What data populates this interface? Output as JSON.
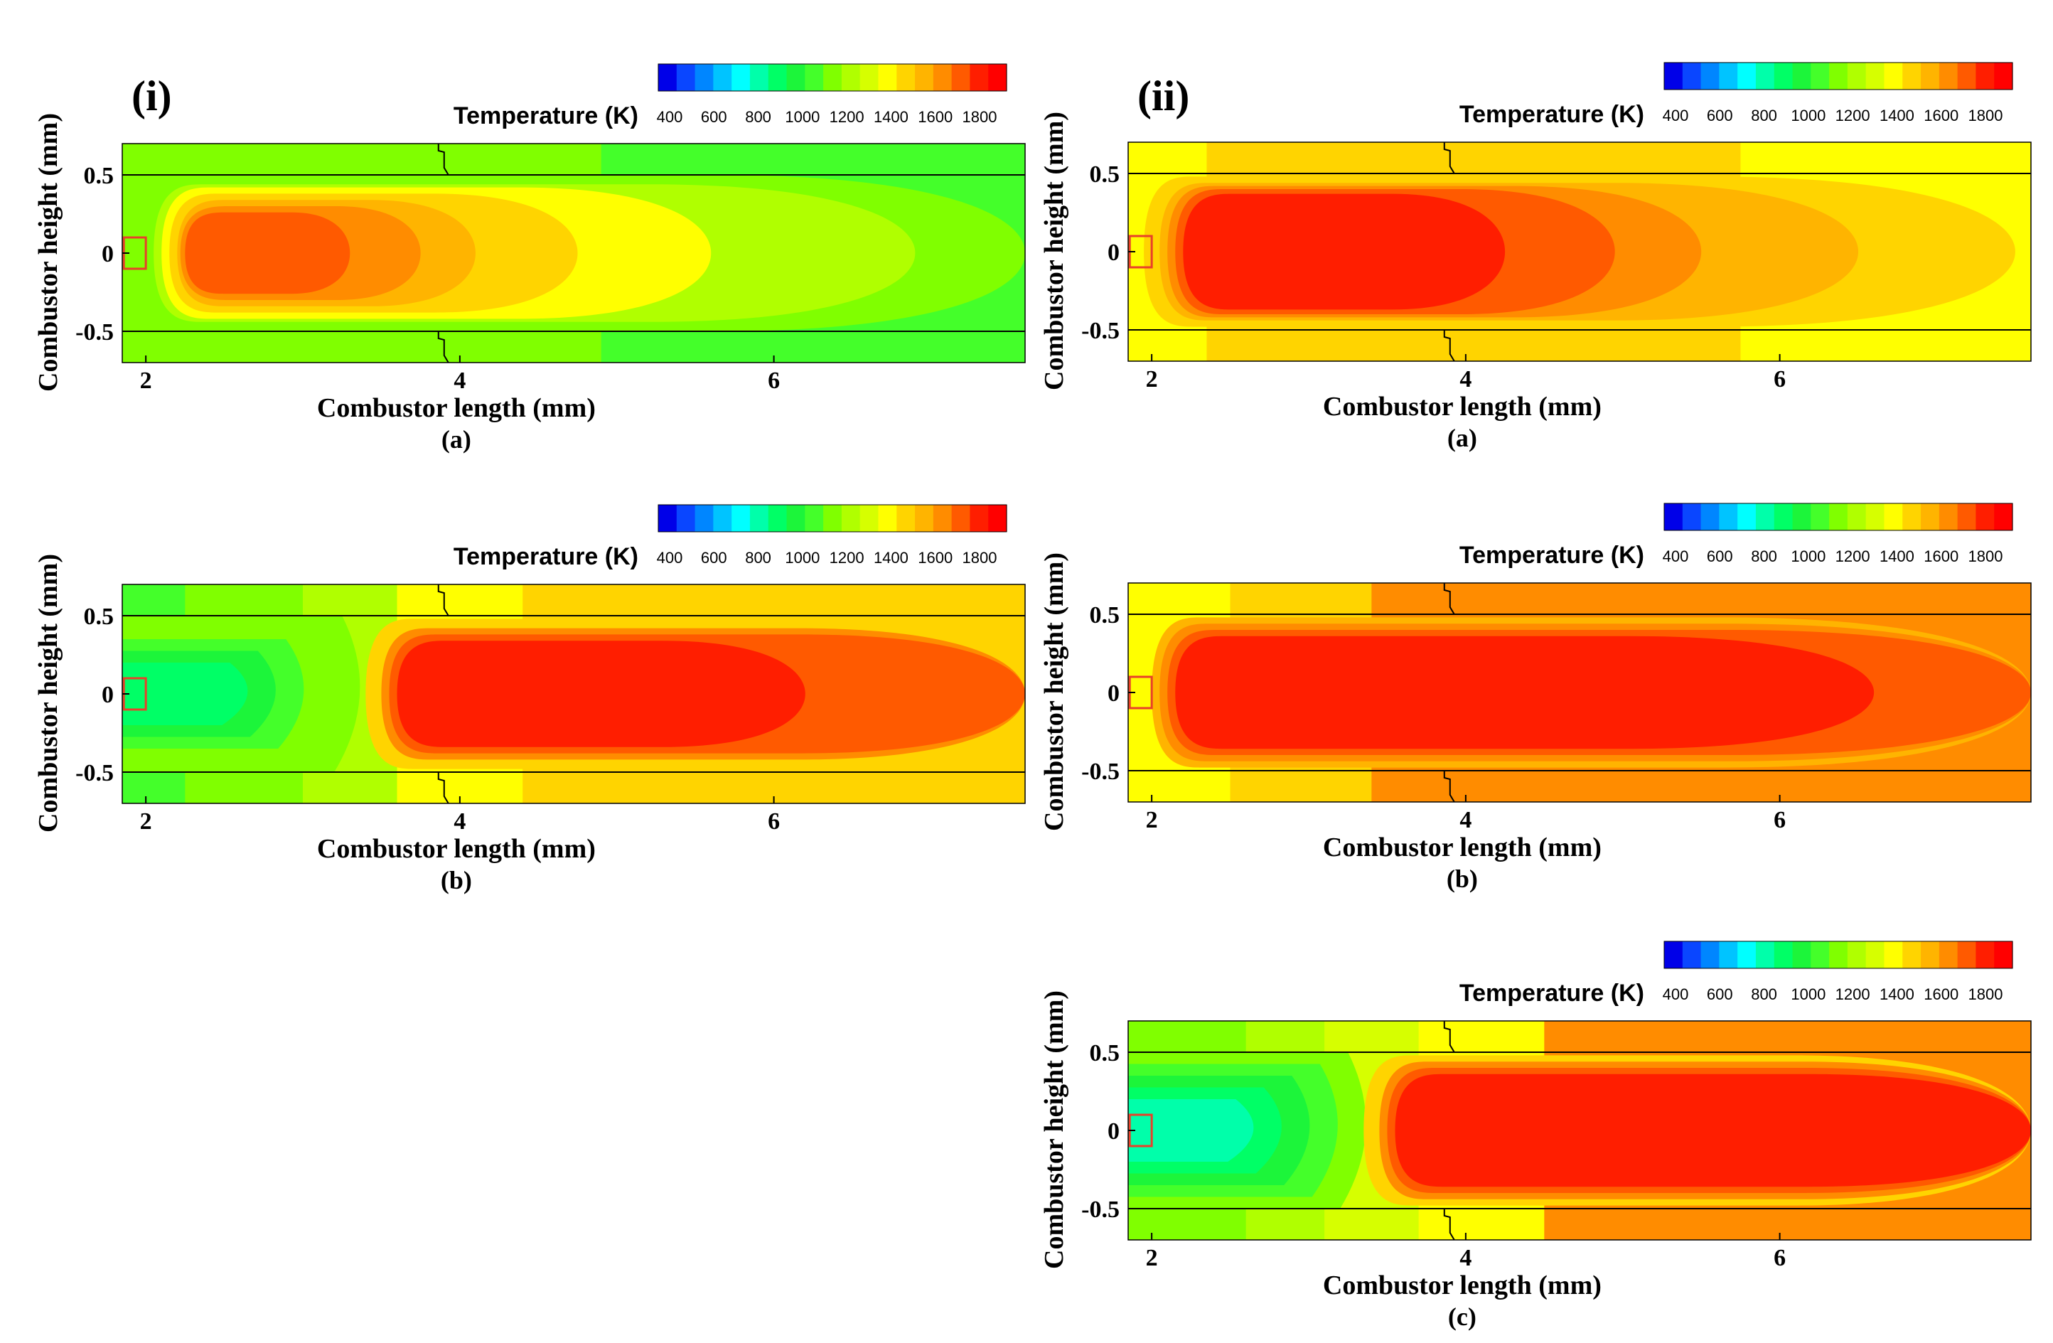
{
  "colorbar": {
    "title": "Temperature (K)",
    "ticks": [
      "400",
      "600",
      "800",
      "1000",
      "1200",
      "1400",
      "1600",
      "1800"
    ],
    "tick_values": [
      400,
      600,
      800,
      1000,
      1200,
      1400,
      1600,
      1800
    ],
    "range": [
      350,
      1900
    ],
    "colors": [
      "#0000e8",
      "#0a46ff",
      "#0086ff",
      "#00c4ff",
      "#00ffff",
      "#00ffaa",
      "#00ff66",
      "#1cf53a",
      "#44ff2a",
      "#80ff00",
      "#b0ff00",
      "#d6ff00",
      "#ffff00",
      "#ffd400",
      "#ffb400",
      "#ff8c00",
      "#ff5a00",
      "#ff1e00",
      "#ff0000"
    ]
  },
  "groups": [
    {
      "label": "(i)"
    },
    {
      "label": "(ii)"
    }
  ],
  "panels": [
    {
      "id": "i-a",
      "group": 0,
      "caption": "(a)",
      "xlabel": "Combustor length (mm)",
      "ylabel": "Combustor height (mm)",
      "xticks": [
        "2",
        "4",
        "6"
      ],
      "yticks": [
        "0.5",
        "0",
        "-0.5"
      ]
    },
    {
      "id": "i-b",
      "group": 0,
      "caption": "(b)",
      "xlabel": "Combustor length (mm)",
      "ylabel": "Combustor height (mm)",
      "xticks": [
        "2",
        "4",
        "6"
      ],
      "yticks": [
        "0.5",
        "0",
        "-0.5"
      ]
    },
    {
      "id": "ii-a",
      "group": 1,
      "caption": "(a)",
      "xlabel": "Combustor length (mm)",
      "ylabel": "Combustor height (mm)",
      "xticks": [
        "2",
        "4",
        "6"
      ],
      "yticks": [
        "0.5",
        "0",
        "-0.5"
      ]
    },
    {
      "id": "ii-b",
      "group": 1,
      "caption": "(b)",
      "xlabel": "Combustor length (mm)",
      "ylabel": "Combustor height (mm)",
      "xticks": [
        "2",
        "4",
        "6"
      ],
      "yticks": [
        "0.5",
        "0",
        "-0.5"
      ]
    },
    {
      "id": "ii-c",
      "group": 1,
      "caption": "(c)",
      "xlabel": "Combustor length (mm)",
      "ylabel": "Combustor height (mm)",
      "xticks": [
        "2",
        "4",
        "6"
      ],
      "yticks": [
        "0.5",
        "0",
        "-0.5"
      ]
    }
  ],
  "chart_data": [
    {
      "type": "heatmap",
      "panel": "(i)(a)",
      "xlabel": "Combustor length (mm)",
      "ylabel": "Combustor height (mm)",
      "xlim": [
        1.85,
        7.6
      ],
      "ylim": [
        -0.7,
        0.7
      ],
      "colorbar_label": "Temperature (K)",
      "wall_temperature_bands_K": [
        {
          "x": [
            1.85,
            4.9
          ],
          "T": 1100
        },
        {
          "x": [
            4.9,
            7.6
          ],
          "T": 1050
        }
      ],
      "contours_K": [
        {
          "T": 1150,
          "x_start": 1.95,
          "x_end": 7.6,
          "half_width": 0.5
        },
        {
          "T": 1250,
          "x_start": 2.05,
          "x_end": 6.9,
          "half_width": 0.44
        },
        {
          "T": 1350,
          "x_start": 2.1,
          "x_end": 5.6,
          "half_width": 0.42
        },
        {
          "T": 1450,
          "x_start": 2.15,
          "x_end": 4.75,
          "half_width": 0.38
        },
        {
          "T": 1550,
          "x_start": 2.2,
          "x_end": 4.1,
          "half_width": 0.34
        },
        {
          "T": 1650,
          "x_start": 2.22,
          "x_end": 3.75,
          "half_width": 0.3
        },
        {
          "T": 1750,
          "x_start": 2.25,
          "x_end": 3.3,
          "half_width": 0.26
        }
      ],
      "peak_K": 1800
    },
    {
      "type": "heatmap",
      "panel": "(i)(b)",
      "xlabel": "Combustor length (mm)",
      "ylabel": "Combustor height (mm)",
      "xlim": [
        1.85,
        7.6
      ],
      "ylim": [
        -0.7,
        0.7
      ],
      "colorbar_label": "Temperature (K)",
      "wall_temperature_bands_K": [
        {
          "x": [
            1.85,
            2.25
          ],
          "T": 1050
        },
        {
          "x": [
            2.25,
            3.0
          ],
          "T": 1100
        },
        {
          "x": [
            3.0,
            3.6
          ],
          "T": 1200
        },
        {
          "x": [
            3.6,
            4.4
          ],
          "T": 1350
        },
        {
          "x": [
            4.4,
            7.6
          ],
          "T": 1500
        }
      ],
      "inlet_region_min_K": 900,
      "flame_front_x": 3.5,
      "contours_K": [
        {
          "T": 1500,
          "x_start": 3.4,
          "x_end": 7.6,
          "half_width": 0.48
        },
        {
          "T": 1600,
          "x_start": 3.5,
          "x_end": 7.6,
          "half_width": 0.42
        },
        {
          "T": 1700,
          "x_start": 3.55,
          "x_end": 7.6,
          "half_width": 0.38
        },
        {
          "T": 1800,
          "x_start": 3.6,
          "x_end": 6.2,
          "half_width": 0.34
        }
      ],
      "peak_K": 1800
    },
    {
      "type": "heatmap",
      "panel": "(ii)(a)",
      "xlabel": "Combustor length (mm)",
      "ylabel": "Combustor height (mm)",
      "xlim": [
        1.85,
        7.6
      ],
      "ylim": [
        -0.7,
        0.7
      ],
      "colorbar_label": "Temperature (K)",
      "wall_temperature_bands_K": [
        {
          "x": [
            1.85,
            2.35
          ],
          "T": 1350
        },
        {
          "x": [
            2.35,
            5.75
          ],
          "T": 1450
        },
        {
          "x": [
            5.75,
            7.6
          ],
          "T": 1350
        }
      ],
      "contours_K": [
        {
          "T": 1450,
          "x_start": 1.95,
          "x_end": 7.5,
          "half_width": 0.48
        },
        {
          "T": 1550,
          "x_start": 2.05,
          "x_end": 6.5,
          "half_width": 0.44
        },
        {
          "T": 1650,
          "x_start": 2.1,
          "x_end": 5.5,
          "half_width": 0.42
        },
        {
          "T": 1750,
          "x_start": 2.15,
          "x_end": 4.95,
          "half_width": 0.4
        },
        {
          "T": 1800,
          "x_start": 2.2,
          "x_end": 4.25,
          "half_width": 0.37
        }
      ],
      "peak_K": 1800
    },
    {
      "type": "heatmap",
      "panel": "(ii)(b)",
      "xlabel": "Combustor length (mm)",
      "ylabel": "Combustor height (mm)",
      "xlim": [
        1.85,
        7.6
      ],
      "ylim": [
        -0.7,
        0.7
      ],
      "colorbar_label": "Temperature (K)",
      "wall_temperature_bands_K": [
        {
          "x": [
            1.85,
            2.5
          ],
          "T": 1350
        },
        {
          "x": [
            2.5,
            3.4
          ],
          "T": 1450
        },
        {
          "x": [
            3.4,
            4.8
          ],
          "T": 1600
        },
        {
          "x": [
            4.8,
            7.6
          ],
          "T": 1650
        }
      ],
      "contours_K": [
        {
          "T": 1550,
          "x_start": 2.0,
          "x_end": 7.6,
          "half_width": 0.48
        },
        {
          "T": 1650,
          "x_start": 2.05,
          "x_end": 7.6,
          "half_width": 0.44
        },
        {
          "T": 1750,
          "x_start": 2.1,
          "x_end": 7.6,
          "half_width": 0.4
        },
        {
          "T": 1800,
          "x_start": 2.15,
          "x_end": 6.6,
          "half_width": 0.36
        }
      ],
      "peak_K": 1800
    },
    {
      "type": "heatmap",
      "panel": "(ii)(c)",
      "xlabel": "Combustor length (mm)",
      "ylabel": "Combustor height (mm)",
      "xlim": [
        1.85,
        7.6
      ],
      "ylim": [
        -0.7,
        0.7
      ],
      "colorbar_label": "Temperature (K)",
      "wall_temperature_bands_K": [
        {
          "x": [
            1.85,
            2.6
          ],
          "T": 1100
        },
        {
          "x": [
            2.6,
            3.1
          ],
          "T": 1200
        },
        {
          "x": [
            3.1,
            3.7
          ],
          "T": 1300
        },
        {
          "x": [
            3.7,
            4.5
          ],
          "T": 1400
        },
        {
          "x": [
            4.5,
            7.6
          ],
          "T": 1600
        }
      ],
      "inlet_region_min_K": 750,
      "flame_front_x": 3.5,
      "contours_K": [
        {
          "T": 1500,
          "x_start": 3.35,
          "x_end": 7.6,
          "half_width": 0.48
        },
        {
          "T": 1600,
          "x_start": 3.45,
          "x_end": 7.6,
          "half_width": 0.44
        },
        {
          "T": 1700,
          "x_start": 3.5,
          "x_end": 7.6,
          "half_width": 0.4
        },
        {
          "T": 1800,
          "x_start": 3.55,
          "x_end": 7.6,
          "half_width": 0.36
        }
      ],
      "peak_K": 1800
    }
  ]
}
